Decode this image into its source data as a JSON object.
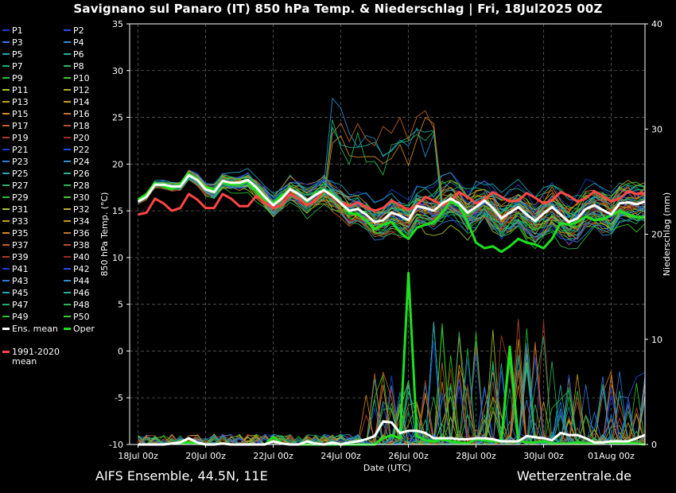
{
  "title": "Savignano sul Panaro  (IT)  850 hPa Temp. & Niederschlag | Fri, 18Jul2025 00Z",
  "footer": {
    "model": "AIFS Ensemble, 44.5N, 11E",
    "source": "Wetterzentrale.de"
  },
  "legend": {
    "members": [
      "P1",
      "P2",
      "P3",
      "P4",
      "P5",
      "P6",
      "P7",
      "P8",
      "P9",
      "P10",
      "P11",
      "P12",
      "P13",
      "P14",
      "P15",
      "P16",
      "P17",
      "P18",
      "P19",
      "P20",
      "P21",
      "P22",
      "P23",
      "P24",
      "P25",
      "P26",
      "P27",
      "P28",
      "P29",
      "P30",
      "P31",
      "P32",
      "P33",
      "P34",
      "P35",
      "P36",
      "P37",
      "P38",
      "P39",
      "P40",
      "P41",
      "P42",
      "P43",
      "P44",
      "P45",
      "P46",
      "P47",
      "P48",
      "P49",
      "P50"
    ],
    "member_colors": [
      "#1a3fd6",
      "#1f4ff0",
      "#2f7ad8",
      "#2b8fd4",
      "#20a6b8",
      "#1fb39a",
      "#1fb070",
      "#25b856",
      "#22c431",
      "#34d020",
      "#a8c828",
      "#bcb020",
      "#c8a018",
      "#d09a1c",
      "#d68a22",
      "#c8742a",
      "#c86222",
      "#c0502a",
      "#b03a2a",
      "#a02820",
      "#1a3fd6",
      "#1f4ff0",
      "#2f7ad8",
      "#2b8fd4",
      "#20a6b8",
      "#1fb39a",
      "#1fb070",
      "#25b856",
      "#22c431",
      "#34d020",
      "#a8c828",
      "#bcb020",
      "#c8a018",
      "#d09a1c",
      "#d68a22",
      "#c8742a",
      "#c86222",
      "#c0502a",
      "#b03a2a",
      "#a02820",
      "#1a3fd6",
      "#1f4ff0",
      "#2f7ad8",
      "#2b8fd4",
      "#20a6b8",
      "#1fb39a",
      "#1fb070",
      "#25b856",
      "#22c431",
      "#34d020"
    ],
    "ens_mean_label": "Ens. mean",
    "oper_label": "Oper",
    "climate_label_1": "1991-2020",
    "climate_label_2": "mean",
    "ens_mean_color": "#ffffff",
    "oper_color": "#1ee01e",
    "climate_color": "#ff4545"
  },
  "chart_data": {
    "type": "line",
    "xlabel": "Date (UTC)",
    "ylabel_left": "850 hPa Temp. (°C)",
    "ylabel_right": "Niederschlag (mm)",
    "ylim_left": [
      -10,
      35
    ],
    "ylim_right": [
      0,
      40
    ],
    "yticks_left": [
      -10,
      -5,
      0,
      5,
      10,
      15,
      20,
      25,
      30,
      35
    ],
    "yticks_right": [
      0,
      10,
      20,
      30,
      40
    ],
    "xlim_hours": [
      -6,
      360
    ],
    "xticks": [
      {
        "label": "18Jul 00z",
        "hour": 0
      },
      {
        "label": "20Jul 00z",
        "hour": 48
      },
      {
        "label": "22Jul 00z",
        "hour": 96
      },
      {
        "label": "24Jul 00z",
        "hour": 144
      },
      {
        "label": "26Jul 00z",
        "hour": 192
      },
      {
        "label": "28Jul 00z",
        "hour": 240
      },
      {
        "label": "30Jul 00z",
        "hour": 288
      },
      {
        "label": "01Aug 00z",
        "hour": 336
      }
    ],
    "grid": true,
    "time_step_hours": 6,
    "ens_mean_temp": [
      16.0,
      16.5,
      17.8,
      17.8,
      17.6,
      17.6,
      18.8,
      18.3,
      17.3,
      17.0,
      18.2,
      18.0,
      18.0,
      18.3,
      17.5,
      16.5,
      15.6,
      16.3,
      17.3,
      16.8,
      16.1,
      16.7,
      17.2,
      16.6,
      15.8,
      15.0,
      15.2,
      14.6,
      13.8,
      14.0,
      14.8,
      14.5,
      14.0,
      15.5,
      15.3,
      15.0,
      15.8,
      16.3,
      15.8,
      14.8,
      15.4,
      16.1,
      15.3,
      14.2,
      14.8,
      15.4,
      14.6,
      13.9,
      14.7,
      15.4,
      14.6,
      13.8,
      14.2,
      15.2,
      15.6,
      15.1,
      14.6,
      15.8,
      15.9,
      15.7,
      16.0
    ],
    "oper_temp": [
      16.2,
      16.8,
      18.0,
      17.6,
      17.3,
      17.9,
      19.0,
      18.3,
      17.5,
      17.2,
      18.0,
      17.8,
      17.9,
      18.1,
      17.1,
      16.2,
      15.8,
      16.6,
      17.3,
      16.8,
      16.0,
      16.8,
      17.3,
      16.7,
      15.8,
      14.8,
      14.6,
      14.0,
      13.0,
      13.5,
      13.8,
      12.7,
      12.0,
      13.2,
      13.5,
      13.8,
      14.8,
      16.0,
      15.5,
      13.8,
      11.6,
      11.0,
      11.2,
      10.6,
      11.2,
      12.0,
      11.6,
      11.4,
      11.0,
      12.0,
      13.7,
      13.5,
      13.8,
      14.4,
      14.0,
      14.1,
      14.5,
      15.0,
      14.6,
      14.3,
      14.3
    ],
    "climate_temp": [
      14.6,
      14.8,
      16.3,
      15.8,
      15.0,
      15.3,
      16.8,
      16.2,
      15.3,
      15.3,
      16.8,
      16.3,
      15.5,
      15.5,
      16.6,
      15.9,
      15.3,
      15.6,
      16.8,
      16.3,
      15.6,
      16.1,
      17.2,
      16.6,
      15.9,
      15.5,
      15.9,
      15.4,
      15.0,
      15.3,
      16.1,
      15.6,
      15.1,
      15.6,
      16.5,
      16.1,
      15.6,
      16.0,
      17.0,
      16.5,
      15.8,
      16.2,
      17.0,
      16.5,
      16.0,
      16.1,
      16.9,
      16.4,
      15.8,
      16.1,
      17.0,
      16.6,
      16.0,
      16.3,
      17.1,
      16.6,
      16.0,
      16.3,
      17.1,
      16.8,
      16.9
    ],
    "ens_mean_precip": [
      0,
      0,
      0,
      0,
      0.1,
      0.2,
      0.6,
      0.2,
      0,
      0,
      0.1,
      0,
      0,
      0,
      0,
      0,
      0.3,
      0.1,
      0,
      0,
      0.3,
      0.1,
      0,
      0.2,
      0,
      0.2,
      0.3,
      0.5,
      0.8,
      2.2,
      2.1,
      1.1,
      1.3,
      1.3,
      1.1,
      0.6,
      0.6,
      0.6,
      0.5,
      0.5,
      0.6,
      0.6,
      0.5,
      0.3,
      0.3,
      0.3,
      0.8,
      0.7,
      0.6,
      0.4,
      1.1,
      0.9,
      0.9,
      0.6,
      0.2,
      0.2,
      0.3,
      0.3,
      0.3,
      0.6,
      0.9
    ],
    "oper_precip": [
      0,
      0,
      0,
      0,
      0.1,
      0.1,
      0.2,
      0.1,
      0,
      0,
      0.1,
      0,
      0,
      0,
      0,
      0,
      0.7,
      0.1,
      0,
      0,
      0,
      0,
      0,
      0,
      0,
      0,
      0,
      0,
      0,
      0.6,
      0.9,
      0.6,
      16.3,
      0.8,
      0.4,
      0.3,
      0.5,
      0.3,
      0.2,
      0.1,
      0.5,
      0.4,
      0.3,
      0.3,
      9.3,
      0.4,
      0.2,
      0.2,
      0.3,
      0.1,
      0.1,
      0.1,
      0.2,
      0.1,
      0.1,
      0.2,
      0.2,
      0.1,
      0.2,
      0.1,
      0.0
    ]
  }
}
